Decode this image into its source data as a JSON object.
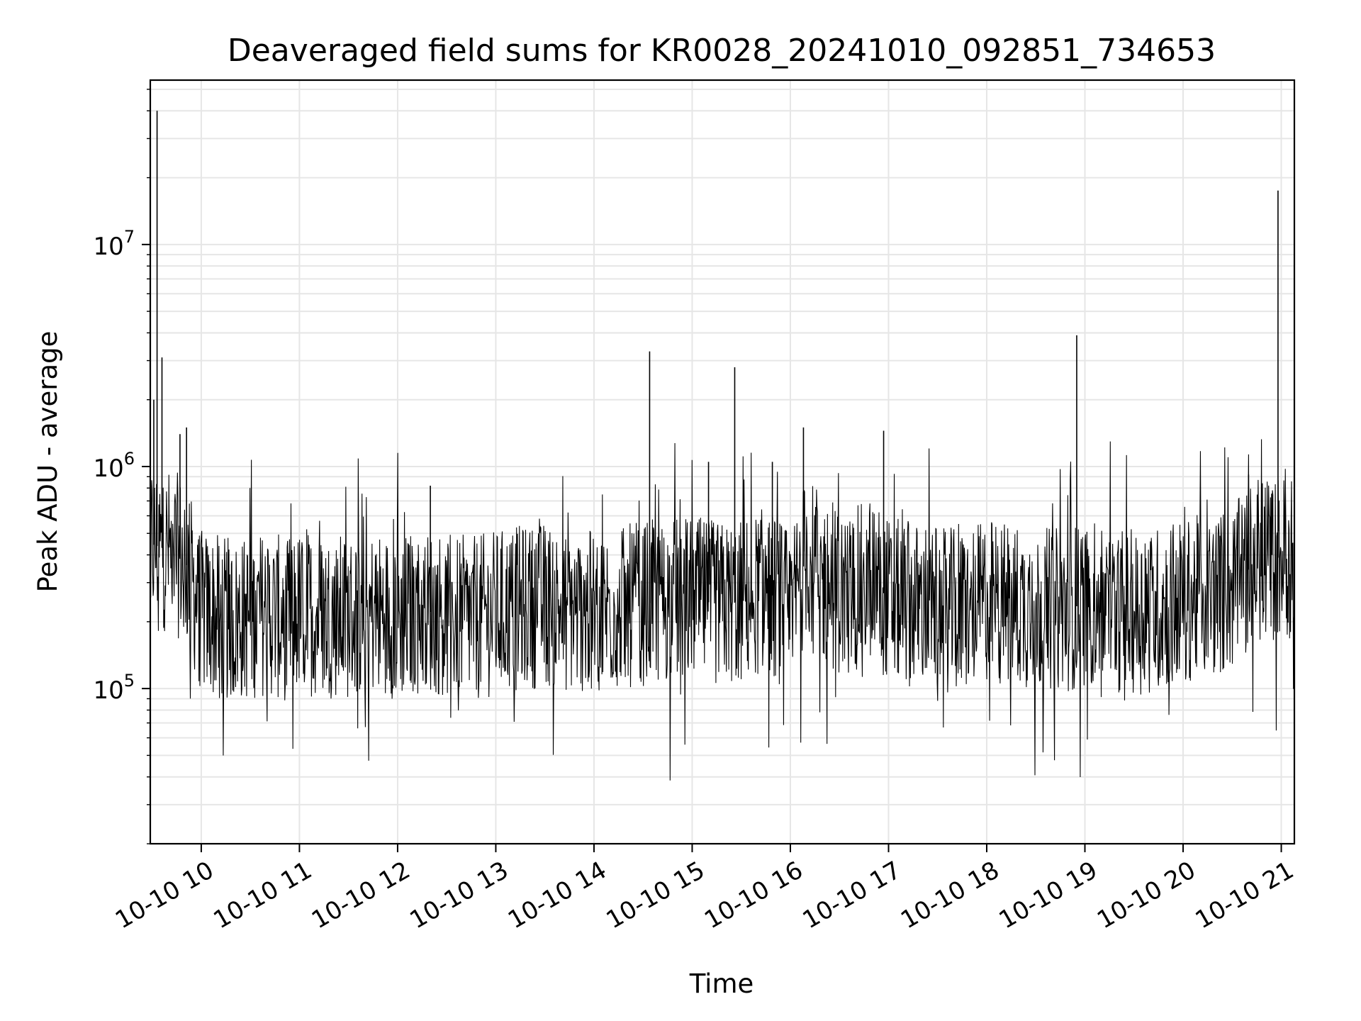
{
  "chart_data": {
    "type": "line",
    "title": "Deaveraged field sums for KR0028_20241010_092851_734653",
    "xlabel": "Time",
    "ylabel": "Peak ADU - average",
    "yscale": "log",
    "ylim": [
      20000,
      55000000
    ],
    "xlim": [
      "2024-10-10 09:28:51",
      "2024-10-10 21:08:00"
    ],
    "grid": true,
    "line_color": "#000000",
    "grid_color": "#e6e6e6",
    "x_ticks": [
      {
        "time": "2024-10-10 10:00",
        "label": "10-10 10"
      },
      {
        "time": "2024-10-10 11:00",
        "label": "10-10 11"
      },
      {
        "time": "2024-10-10 12:00",
        "label": "10-10 12"
      },
      {
        "time": "2024-10-10 13:00",
        "label": "10-10 13"
      },
      {
        "time": "2024-10-10 14:00",
        "label": "10-10 14"
      },
      {
        "time": "2024-10-10 15:00",
        "label": "10-10 15"
      },
      {
        "time": "2024-10-10 16:00",
        "label": "10-10 16"
      },
      {
        "time": "2024-10-10 17:00",
        "label": "10-10 17"
      },
      {
        "time": "2024-10-10 18:00",
        "label": "10-10 18"
      },
      {
        "time": "2024-10-10 19:00",
        "label": "10-10 19"
      },
      {
        "time": "2024-10-10 20:00",
        "label": "10-10 20"
      },
      {
        "time": "2024-10-10 21:00",
        "label": "10-10 21"
      }
    ],
    "y_ticks": [
      {
        "value": 100000,
        "base": "10",
        "exp": "5"
      },
      {
        "value": 1000000,
        "base": "10",
        "exp": "6"
      },
      {
        "value": 10000000,
        "base": "10",
        "exp": "7"
      }
    ],
    "series": [
      {
        "x": [
          "2024-10-10 09:28:51",
          "2024-10-10 09:40",
          "2024-10-10 09:50",
          "2024-10-10 10:00",
          "2024-10-10 10:10",
          "2024-10-10 10:20",
          "2024-10-10 10:30",
          "2024-10-10 10:40",
          "2024-10-10 10:50",
          "2024-10-10 11:00",
          "2024-10-10 11:15",
          "2024-10-10 11:30",
          "2024-10-10 11:45",
          "2024-10-10 12:00",
          "2024-10-10 12:15",
          "2024-10-10 12:30",
          "2024-10-10 12:45",
          "2024-10-10 13:00",
          "2024-10-10 13:15",
          "2024-10-10 13:30",
          "2024-10-10 13:45",
          "2024-10-10 14:00",
          "2024-10-10 14:15",
          "2024-10-10 14:30",
          "2024-10-10 14:45",
          "2024-10-10 15:00",
          "2024-10-10 15:15",
          "2024-10-10 15:30",
          "2024-10-10 15:45",
          "2024-10-10 16:00",
          "2024-10-10 16:10",
          "2024-10-10 16:20",
          "2024-10-10 16:35",
          "2024-10-10 16:50",
          "2024-10-10 17:00",
          "2024-10-10 17:15",
          "2024-10-10 17:30",
          "2024-10-10 17:45",
          "2024-10-10 18:00",
          "2024-10-10 18:15",
          "2024-10-10 18:30",
          "2024-10-10 18:45",
          "2024-10-10 19:00",
          "2024-10-10 19:15",
          "2024-10-10 19:30",
          "2024-10-10 19:45",
          "2024-10-10 20:00",
          "2024-10-10 20:15",
          "2024-10-10 20:30",
          "2024-10-10 20:45",
          "2024-10-10 21:00",
          "2024-10-10 21:08"
        ],
        "y": [
          450000,
          420000,
          380000,
          220000,
          210000,
          200000,
          210000,
          220000,
          205000,
          220000,
          215000,
          210000,
          220000,
          210000,
          225000,
          215000,
          205000,
          220000,
          230000,
          240000,
          225000,
          220000,
          230000,
          240000,
          250000,
          255000,
          240000,
          245000,
          280000,
          220000,
          400000,
          300000,
          260000,
          320000,
          250000,
          240000,
          230000,
          220000,
          250000,
          240000,
          230000,
          225000,
          240000,
          230000,
          220000,
          230000,
          250000,
          260000,
          280000,
          380000,
          390000,
          400000
        ]
      }
    ],
    "spikes": [
      {
        "time": "2024-10-10 09:33",
        "value": 40000000
      },
      {
        "time": "2024-10-10 09:36",
        "value": 3100000
      },
      {
        "time": "2024-10-10 09:31",
        "value": 2000000
      },
      {
        "time": "2024-10-10 09:47",
        "value": 1400000
      },
      {
        "time": "2024-10-10 09:51",
        "value": 1500000
      },
      {
        "time": "2024-10-10 12:20",
        "value": 820000
      },
      {
        "time": "2024-10-10 14:34",
        "value": 3300000
      },
      {
        "time": "2024-10-10 15:10",
        "value": 1050000
      },
      {
        "time": "2024-10-10 15:26",
        "value": 2800000
      },
      {
        "time": "2024-10-10 15:49",
        "value": 1050000
      },
      {
        "time": "2024-10-10 16:08",
        "value": 1500000
      },
      {
        "time": "2024-10-10 16:57",
        "value": 1450000
      },
      {
        "time": "2024-10-10 18:55",
        "value": 3900000
      },
      {
        "time": "2024-10-10 20:40",
        "value": 920000
      },
      {
        "time": "2024-10-10 20:58",
        "value": 17500000
      }
    ]
  }
}
